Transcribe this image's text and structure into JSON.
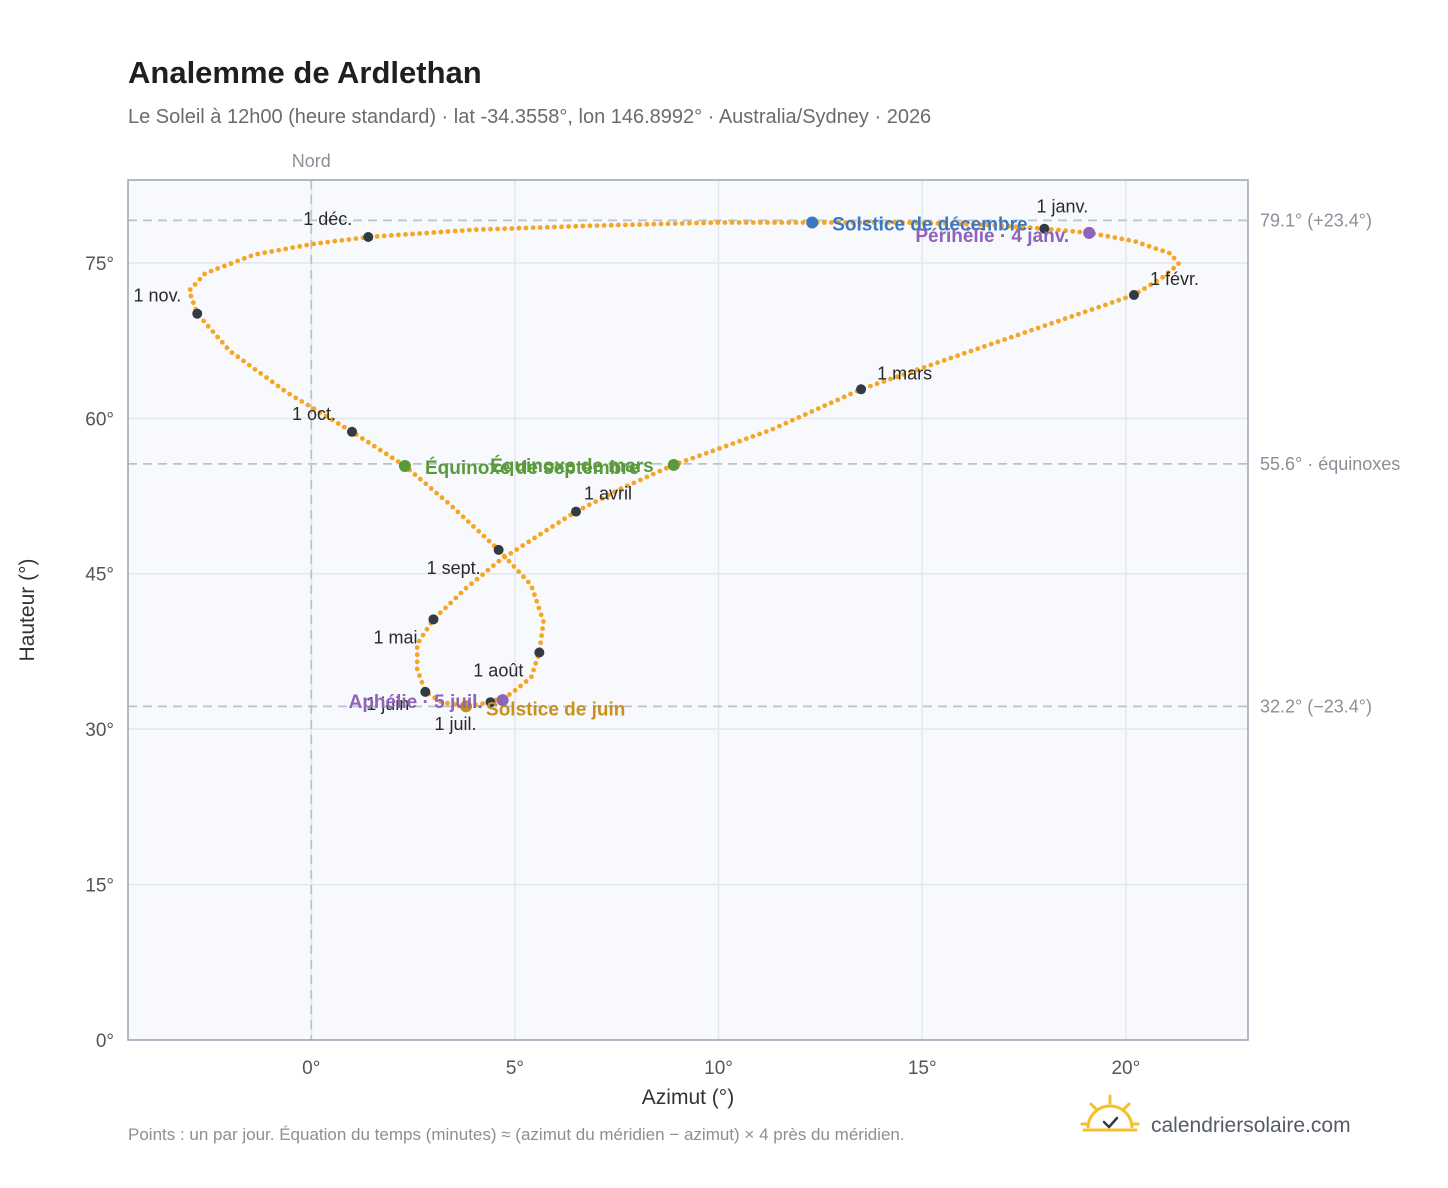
{
  "header": {
    "title": "Analemme de Ardlethan",
    "subtitle": "Le Soleil à 12h00 (heure standard) · lat -34.3558°, lon 146.8992° · Australia/Sydney · 2026"
  },
  "footer": {
    "note": "Points : un par jour. Équation du temps (minutes) ≈ (azimut du méridien − azimut) × 4 près du méridien.",
    "brand": "calendriersolaire.com",
    "brand_icon": "sun-check-icon"
  },
  "colors": {
    "curve": "#f5a623",
    "month_marker": "#333a44",
    "december_solstice": "#3a78c2",
    "june_solstice": "#c9911c",
    "equinox": "#5a9a3a",
    "apsis": "#8e63b8",
    "plot_bg": "#f7f9fc",
    "grid": "#e3e7ee",
    "ref_line": "#b9c2cf"
  },
  "chart_data": {
    "type": "scatter",
    "title": "Analemme de Ardlethan",
    "xlabel": "Azimut (°)",
    "ylabel": "Hauteur (°)",
    "xlim": [
      -4.5,
      23
    ],
    "ylim": [
      0,
      83
    ],
    "x_ticks": [
      0,
      5,
      10,
      15,
      20
    ],
    "x_tick_labels": [
      "0°",
      "5°",
      "10°",
      "15°",
      "20°"
    ],
    "y_ticks": [
      0,
      15,
      30,
      45,
      60,
      75
    ],
    "y_tick_labels": [
      "0°",
      "15°",
      "30°",
      "45°",
      "60°",
      "75°"
    ],
    "grid": true,
    "north_line": {
      "x": 0,
      "label": "Nord"
    },
    "reference_lines": [
      {
        "y": 79.1,
        "label": "79.1° (+23.4°)"
      },
      {
        "y": 55.6,
        "label": "55.6° · équinoxes"
      },
      {
        "y": 32.2,
        "label": "32.2° (−23.4°)"
      }
    ],
    "month_markers": [
      {
        "label": "1 janv.",
        "x": 18.0,
        "y": 78.3
      },
      {
        "label": "1 févr.",
        "x": 20.2,
        "y": 71.9
      },
      {
        "label": "1 mars",
        "x": 13.5,
        "y": 62.8
      },
      {
        "label": "1 avril",
        "x": 6.5,
        "y": 51.0
      },
      {
        "label": "1 mai",
        "x": 3.0,
        "y": 40.6
      },
      {
        "label": "1 juin",
        "x": 2.8,
        "y": 33.6
      },
      {
        "label": "1 juil.",
        "x": 4.4,
        "y": 32.6
      },
      {
        "label": "1 août",
        "x": 5.6,
        "y": 37.4
      },
      {
        "label": "1 sept.",
        "x": 4.6,
        "y": 47.3
      },
      {
        "label": "1 oct.",
        "x": 1.0,
        "y": 58.7
      },
      {
        "label": "1 nov.",
        "x": -2.8,
        "y": 70.1
      },
      {
        "label": "1 déc.",
        "x": 1.4,
        "y": 77.5
      }
    ],
    "events": [
      {
        "label": "Solstice de décembre",
        "x": 12.3,
        "y": 78.9,
        "kind": "december_solstice"
      },
      {
        "label": "Périhélie · 4 janv.",
        "x": 19.1,
        "y": 77.9,
        "kind": "apsis"
      },
      {
        "label": "Équinoxe de mars",
        "x": 8.9,
        "y": 55.5,
        "kind": "equinox"
      },
      {
        "label": "Équinoxe de septembre",
        "x": 2.3,
        "y": 55.4,
        "kind": "equinox"
      },
      {
        "label": "Solstice de juin",
        "x": 3.8,
        "y": 32.2,
        "kind": "june_solstice"
      },
      {
        "label": "Aphélie · 5 juil.",
        "x": 4.7,
        "y": 32.8,
        "kind": "apsis"
      }
    ],
    "analemma_path": [
      [
        18.0,
        78.3
      ],
      [
        19.1,
        77.9
      ],
      [
        20.2,
        77.1
      ],
      [
        21.1,
        75.9
      ],
      [
        21.3,
        74.9
      ],
      [
        20.9,
        73.6
      ],
      [
        20.2,
        71.9
      ],
      [
        18.5,
        69.6
      ],
      [
        16.2,
        66.5
      ],
      [
        13.5,
        62.8
      ],
      [
        11.3,
        58.9
      ],
      [
        8.9,
        55.5
      ],
      [
        7.6,
        53.2
      ],
      [
        6.5,
        51.0
      ],
      [
        5.5,
        48.5
      ],
      [
        4.6,
        46.2
      ],
      [
        3.8,
        43.6
      ],
      [
        3.0,
        40.6
      ],
      [
        2.6,
        38.2
      ],
      [
        2.6,
        35.8
      ],
      [
        2.8,
        33.6
      ],
      [
        3.2,
        32.6
      ],
      [
        3.8,
        32.2
      ],
      [
        4.4,
        32.6
      ],
      [
        4.9,
        33.4
      ],
      [
        5.4,
        35.0
      ],
      [
        5.6,
        37.4
      ],
      [
        5.7,
        40.4
      ],
      [
        5.4,
        43.9
      ],
      [
        4.6,
        47.3
      ],
      [
        3.4,
        51.7
      ],
      [
        2.3,
        55.4
      ],
      [
        1.0,
        58.7
      ],
      [
        -0.6,
        62.5
      ],
      [
        -2.0,
        66.5
      ],
      [
        -2.8,
        70.1
      ],
      [
        -3.0,
        72.3
      ],
      [
        -2.6,
        74.0
      ],
      [
        -1.4,
        75.8
      ],
      [
        0.0,
        76.8
      ],
      [
        1.4,
        77.5
      ],
      [
        4.0,
        78.2
      ],
      [
        7.0,
        78.6
      ],
      [
        10.0,
        78.9
      ],
      [
        12.3,
        78.9
      ],
      [
        14.5,
        78.9
      ],
      [
        16.5,
        78.7
      ],
      [
        18.0,
        78.3
      ]
    ]
  }
}
